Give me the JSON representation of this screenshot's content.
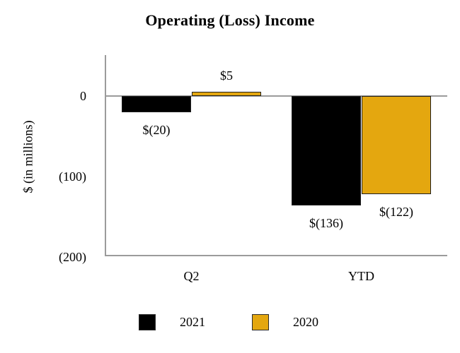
{
  "chart_data": {
    "type": "bar",
    "title": "Operating (Loss) Income",
    "ylabel": "$ (in millions)",
    "categories": [
      "Q2",
      "YTD"
    ],
    "series": [
      {
        "name": "2021",
        "color": "#000000",
        "values": [
          -20,
          -136
        ],
        "labels": [
          "$(20)",
          "$(136)"
        ]
      },
      {
        "name": "2020",
        "color": "#e4a70f",
        "values": [
          5,
          -122
        ],
        "labels": [
          "$5",
          "$(122)"
        ]
      }
    ],
    "y_ticks": [
      {
        "value": 0,
        "label": "0"
      },
      {
        "value": -100,
        "label": "(100)"
      },
      {
        "value": -200,
        "label": "(200)"
      }
    ],
    "ylim": [
      -200,
      45
    ],
    "grid": false,
    "legend_position": "bottom",
    "axis_color": "#9b9b9b"
  }
}
